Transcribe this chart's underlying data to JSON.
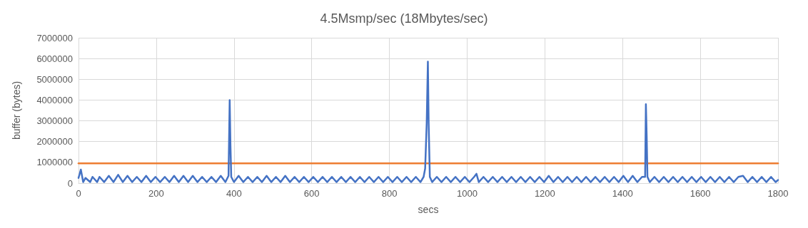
{
  "chart_data": {
    "type": "line",
    "title": "4.5Msmp/sec (18Mbytes/sec)",
    "xlabel": "secs",
    "ylabel": "buffer (bytes)",
    "xlim": [
      0,
      1800
    ],
    "xticks": [
      0,
      200,
      400,
      600,
      800,
      1000,
      1200,
      1400,
      1600,
      1800
    ],
    "ylim": [
      0,
      7000000
    ],
    "yticks": [
      0,
      1000000,
      2000000,
      3000000,
      4000000,
      5000000,
      6000000,
      7000000
    ],
    "grid": true,
    "marker": "none",
    "line_style": "solid",
    "series": [
      {
        "color": "#4472c4",
        "x": [
          0,
          6,
          12,
          18,
          30,
          36,
          48,
          54,
          66,
          78,
          90,
          102,
          114,
          126,
          138,
          150,
          162,
          174,
          186,
          198,
          210,
          222,
          234,
          246,
          258,
          270,
          282,
          294,
          306,
          318,
          330,
          342,
          354,
          366,
          378,
          386,
          389,
          391,
          393,
          400,
          412,
          424,
          436,
          448,
          460,
          472,
          484,
          496,
          508,
          520,
          532,
          544,
          556,
          568,
          580,
          592,
          604,
          616,
          628,
          640,
          652,
          664,
          676,
          688,
          700,
          712,
          724,
          736,
          748,
          760,
          772,
          784,
          796,
          808,
          820,
          832,
          844,
          856,
          868,
          880,
          888,
          892,
          896,
          899,
          901,
          904,
          910,
          922,
          934,
          946,
          958,
          970,
          982,
          994,
          1006,
          1018,
          1024,
          1030,
          1042,
          1054,
          1066,
          1078,
          1090,
          1102,
          1114,
          1126,
          1138,
          1150,
          1162,
          1174,
          1186,
          1198,
          1210,
          1222,
          1234,
          1246,
          1258,
          1270,
          1282,
          1294,
          1306,
          1318,
          1330,
          1342,
          1354,
          1366,
          1378,
          1390,
          1402,
          1414,
          1426,
          1438,
          1450,
          1458,
          1460,
          1462,
          1464,
          1470,
          1482,
          1494,
          1506,
          1518,
          1530,
          1542,
          1554,
          1566,
          1578,
          1590,
          1602,
          1614,
          1626,
          1638,
          1650,
          1662,
          1674,
          1686,
          1698,
          1710,
          1722,
          1734,
          1746,
          1758,
          1770,
          1782,
          1794,
          1800
        ],
        "values": [
          250000,
          650000,
          50000,
          250000,
          50000,
          300000,
          50000,
          300000,
          50000,
          350000,
          50000,
          400000,
          50000,
          350000,
          50000,
          300000,
          50000,
          350000,
          50000,
          300000,
          50000,
          300000,
          50000,
          350000,
          50000,
          350000,
          50000,
          350000,
          50000,
          300000,
          50000,
          300000,
          50000,
          350000,
          50000,
          350000,
          4000000,
          1800000,
          300000,
          50000,
          350000,
          50000,
          300000,
          50000,
          300000,
          50000,
          350000,
          50000,
          300000,
          50000,
          350000,
          50000,
          300000,
          50000,
          300000,
          50000,
          300000,
          50000,
          300000,
          50000,
          300000,
          50000,
          300000,
          50000,
          300000,
          50000,
          300000,
          50000,
          300000,
          50000,
          300000,
          50000,
          300000,
          50000,
          300000,
          50000,
          300000,
          50000,
          300000,
          50000,
          300000,
          700000,
          2900000,
          5850000,
          2900000,
          300000,
          50000,
          300000,
          50000,
          300000,
          50000,
          300000,
          50000,
          300000,
          50000,
          300000,
          450000,
          50000,
          300000,
          50000,
          300000,
          50000,
          300000,
          50000,
          300000,
          50000,
          300000,
          50000,
          300000,
          50000,
          300000,
          50000,
          350000,
          50000,
          300000,
          50000,
          300000,
          50000,
          300000,
          50000,
          300000,
          50000,
          300000,
          50000,
          300000,
          50000,
          300000,
          50000,
          350000,
          50000,
          350000,
          50000,
          300000,
          300000,
          3800000,
          2300000,
          300000,
          50000,
          300000,
          50000,
          300000,
          50000,
          300000,
          50000,
          300000,
          50000,
          300000,
          50000,
          300000,
          50000,
          300000,
          50000,
          300000,
          50000,
          300000,
          50000,
          300000,
          350000,
          50000,
          300000,
          50000,
          300000,
          50000,
          300000,
          50000,
          150000
        ]
      },
      {
        "color": "#ed7d31",
        "x": [
          0,
          1800
        ],
        "values": [
          950000,
          950000
        ]
      }
    ]
  }
}
